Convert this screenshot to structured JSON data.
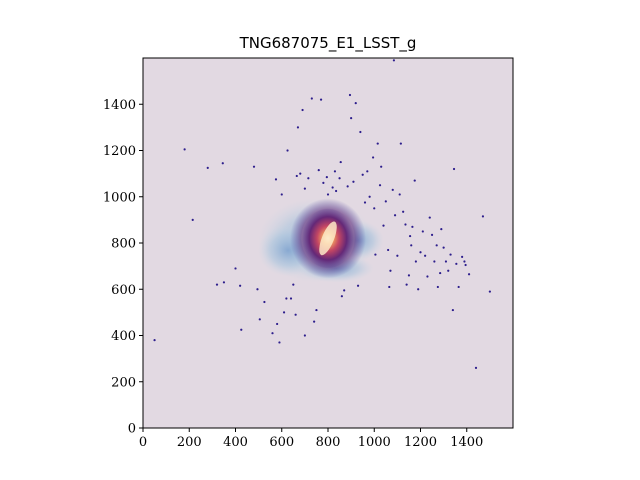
{
  "chart_data": {
    "type": "scatter",
    "title": "TNG687075_E1_LSST_g",
    "xlabel": "",
    "ylabel": "",
    "xlim": [
      0,
      1600
    ],
    "ylim": [
      0,
      1600
    ],
    "x_ticks": [
      "0",
      "200",
      "400",
      "600",
      "800",
      "1000",
      "1200",
      "1400"
    ],
    "y_ticks": [
      "0",
      "200",
      "400",
      "600",
      "800",
      "1000",
      "1200",
      "1400"
    ],
    "grid": false,
    "background_color": "#e2d9e2",
    "point_color": "#2d1e8c",
    "core_colors": [
      "#4b1c6b",
      "#9b2f66",
      "#e0604a",
      "#fde9c8"
    ],
    "halo_color": "#8fb0d4",
    "galaxy_center": [
      800,
      820
    ],
    "stellar_points": [
      [
        50,
        380
      ],
      [
        180,
        1205
      ],
      [
        215,
        900
      ],
      [
        280,
        1125
      ],
      [
        320,
        620
      ],
      [
        345,
        1145
      ],
      [
        350,
        630
      ],
      [
        400,
        690
      ],
      [
        420,
        615
      ],
      [
        425,
        425
      ],
      [
        480,
        1130
      ],
      [
        495,
        600
      ],
      [
        505,
        470
      ],
      [
        525,
        545
      ],
      [
        560,
        410
      ],
      [
        575,
        1075
      ],
      [
        580,
        450
      ],
      [
        590,
        370
      ],
      [
        600,
        1010
      ],
      [
        610,
        500
      ],
      [
        620,
        560
      ],
      [
        625,
        1200
      ],
      [
        640,
        560
      ],
      [
        650,
        620
      ],
      [
        660,
        490
      ],
      [
        665,
        1090
      ],
      [
        670,
        1300
      ],
      [
        680,
        1100
      ],
      [
        690,
        1375
      ],
      [
        700,
        1035
      ],
      [
        700,
        400
      ],
      [
        715,
        1080
      ],
      [
        730,
        1425
      ],
      [
        740,
        460
      ],
      [
        750,
        510
      ],
      [
        760,
        1115
      ],
      [
        770,
        1420
      ],
      [
        780,
        1060
      ],
      [
        795,
        1085
      ],
      [
        800,
        1010
      ],
      [
        820,
        1040
      ],
      [
        830,
        1110
      ],
      [
        835,
        1025
      ],
      [
        850,
        1080
      ],
      [
        855,
        1150
      ],
      [
        860,
        570
      ],
      [
        870,
        595
      ],
      [
        885,
        1045
      ],
      [
        895,
        1440
      ],
      [
        900,
        1340
      ],
      [
        910,
        1065
      ],
      [
        920,
        1405
      ],
      [
        930,
        615
      ],
      [
        940,
        1280
      ],
      [
        950,
        1095
      ],
      [
        960,
        975
      ],
      [
        970,
        1110
      ],
      [
        980,
        1000
      ],
      [
        995,
        1170
      ],
      [
        1000,
        950
      ],
      [
        1005,
        750
      ],
      [
        1015,
        1230
      ],
      [
        1025,
        1050
      ],
      [
        1030,
        1130
      ],
      [
        1040,
        875
      ],
      [
        1050,
        980
      ],
      [
        1060,
        770
      ],
      [
        1065,
        610
      ],
      [
        1070,
        680
      ],
      [
        1080,
        1030
      ],
      [
        1085,
        1590
      ],
      [
        1090,
        920
      ],
      [
        1100,
        745
      ],
      [
        1110,
        1010
      ],
      [
        1115,
        1230
      ],
      [
        1125,
        935
      ],
      [
        1135,
        880
      ],
      [
        1140,
        620
      ],
      [
        1150,
        660
      ],
      [
        1155,
        830
      ],
      [
        1160,
        790
      ],
      [
        1165,
        870
      ],
      [
        1175,
        1070
      ],
      [
        1180,
        720
      ],
      [
        1190,
        600
      ],
      [
        1200,
        760
      ],
      [
        1210,
        850
      ],
      [
        1220,
        745
      ],
      [
        1230,
        655
      ],
      [
        1240,
        910
      ],
      [
        1250,
        835
      ],
      [
        1260,
        720
      ],
      [
        1270,
        790
      ],
      [
        1275,
        610
      ],
      [
        1285,
        670
      ],
      [
        1290,
        860
      ],
      [
        1300,
        780
      ],
      [
        1310,
        720
      ],
      [
        1320,
        680
      ],
      [
        1330,
        750
      ],
      [
        1340,
        510
      ],
      [
        1345,
        1120
      ],
      [
        1355,
        710
      ],
      [
        1365,
        610
      ],
      [
        1380,
        740
      ],
      [
        1390,
        720
      ],
      [
        1395,
        705
      ],
      [
        1410,
        665
      ],
      [
        1440,
        260
      ],
      [
        1470,
        915
      ],
      [
        1500,
        590
      ]
    ]
  }
}
